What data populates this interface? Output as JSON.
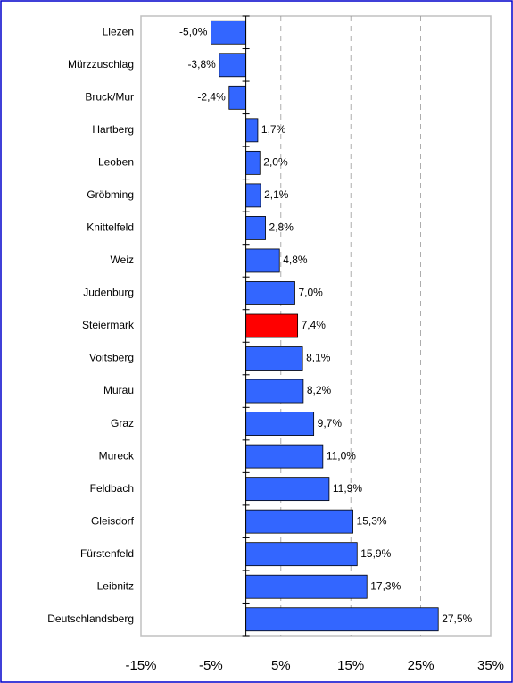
{
  "chart_data": {
    "type": "barh",
    "categories": [
      "Liezen",
      "Mürzzuschlag",
      "Bruck/Mur",
      "Hartberg",
      "Leoben",
      "Gröbming",
      "Knittelfeld",
      "Weiz",
      "Judenburg",
      "Steiermark",
      "Voitsberg",
      "Murau",
      "Graz",
      "Mureck",
      "Feldbach",
      "Gleisdorf",
      "Fürstenfeld",
      "Leibnitz",
      "Deutschlandsberg"
    ],
    "values": [
      -5.0,
      -3.8,
      -2.4,
      1.7,
      2.0,
      2.1,
      2.8,
      4.8,
      7.0,
      7.4,
      8.1,
      8.2,
      9.7,
      11.0,
      11.9,
      15.3,
      15.9,
      17.3,
      27.5
    ],
    "value_labels": [
      "-5,0%",
      "-3,8%",
      "-2,4%",
      "1,7%",
      "2,0%",
      "2,1%",
      "2,8%",
      "4,8%",
      "7,0%",
      "7,4%",
      "8,1%",
      "8,2%",
      "9,7%",
      "11,0%",
      "11,9%",
      "15,3%",
      "15,9%",
      "17,3%",
      "27,5%"
    ],
    "colors": [
      "#3366ff",
      "#3366ff",
      "#3366ff",
      "#3366ff",
      "#3366ff",
      "#3366ff",
      "#3366ff",
      "#3366ff",
      "#3366ff",
      "#ff0000",
      "#3366ff",
      "#3366ff",
      "#3366ff",
      "#3366ff",
      "#3366ff",
      "#3366ff",
      "#3366ff",
      "#3366ff",
      "#3366ff"
    ],
    "xlim": [
      -15,
      35
    ],
    "xticks": [
      {
        "value": -15,
        "label": "-15%"
      },
      {
        "value": -5,
        "label": "-5%"
      },
      {
        "value": 5,
        "label": "5%"
      },
      {
        "value": 15,
        "label": "15%"
      },
      {
        "value": 25,
        "label": "25%"
      },
      {
        "value": 35,
        "label": "35%"
      }
    ],
    "grid": true
  }
}
